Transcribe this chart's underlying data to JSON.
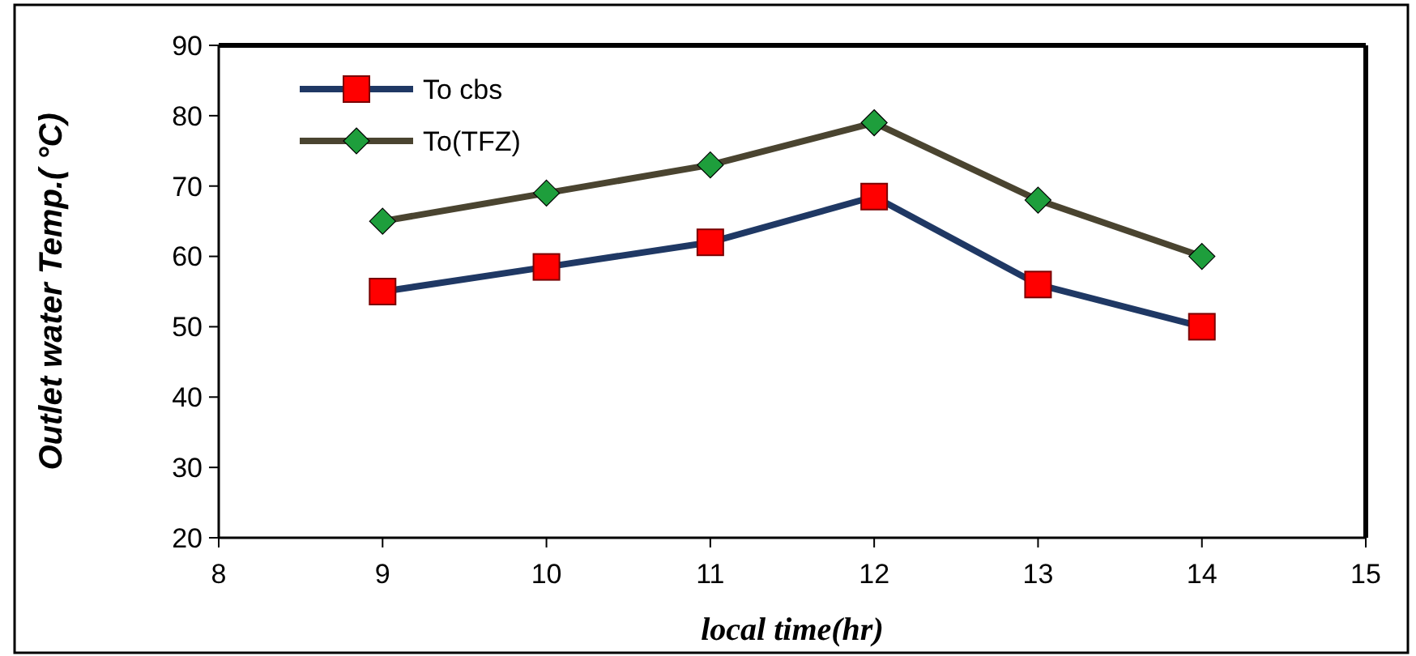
{
  "chart_data": {
    "type": "line",
    "xlabel": "local time(hr)",
    "ylabel": "Outlet water Temp.( °C)",
    "x": [
      9,
      10,
      11,
      12,
      13,
      14
    ],
    "xlim": [
      8,
      15
    ],
    "xticks": [
      8,
      9,
      10,
      11,
      12,
      13,
      14,
      15
    ],
    "ylim": [
      20,
      90
    ],
    "yticks": [
      20,
      30,
      40,
      50,
      60,
      70,
      80,
      90
    ],
    "grid": false,
    "legend": "top left",
    "series": [
      {
        "name": "To cbs",
        "color": "#1f3864",
        "colors": [
          "#ff0000",
          "#ff0000",
          "#ff0000",
          "#ff0000",
          "#ff0000",
          "#ff0000"
        ],
        "marker": "square",
        "values": [
          55,
          58.5,
          62,
          68.5,
          56,
          50
        ]
      },
      {
        "name": "To(TFZ)",
        "color": "#4a4430",
        "colors": [
          "#1e9e3c",
          "#1e9e3c",
          "#1e9e3c",
          "#1e9e3c",
          "#1e9e3c",
          "#1e9e3c"
        ],
        "marker": "diamond",
        "values": [
          65,
          69,
          73,
          79,
          68,
          60
        ]
      }
    ]
  }
}
